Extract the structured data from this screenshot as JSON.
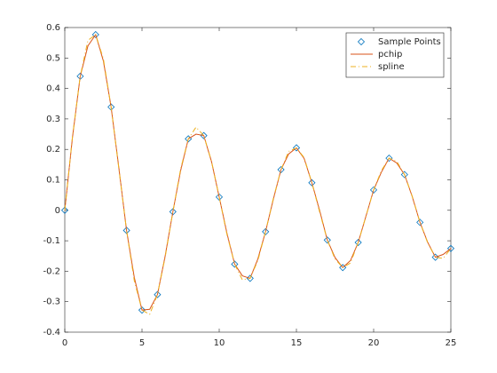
{
  "chart_data": {
    "type": "line",
    "xlim": [
      0,
      25
    ],
    "xticks": [
      0,
      5,
      10,
      15,
      20,
      25
    ],
    "ylim": [
      -0.4,
      0.6
    ],
    "yticks": [
      -0.4,
      -0.3,
      -0.2,
      -0.1,
      0,
      0.1,
      0.2,
      0.3,
      0.4,
      0.5,
      0.6
    ],
    "legend": "upper-right",
    "series": [
      {
        "name": "Sample Points",
        "color": "#0072bd",
        "marker": "diamond",
        "x": [
          0,
          1,
          2,
          3,
          4,
          5,
          6,
          7,
          8,
          9,
          10,
          11,
          12,
          13,
          14,
          15,
          16,
          17,
          18,
          19,
          20,
          21,
          22,
          23,
          24,
          25
        ],
        "values": [
          0,
          0.4401,
          0.5767,
          0.3391,
          -0.066,
          -0.3276,
          -0.2767,
          -0.0047,
          0.2346,
          0.2453,
          0.0435,
          -0.1768,
          -0.2234,
          -0.0703,
          0.1334,
          0.2051,
          0.0904,
          -0.0977,
          -0.188,
          -0.1057,
          0.0668,
          0.1711,
          0.1172,
          -0.0395,
          -0.154,
          -0.1254
        ]
      },
      {
        "name": "pchip",
        "color": "#d95319",
        "dash": "solid",
        "x": [
          0,
          0.5,
          1,
          1.5,
          2,
          2.5,
          3,
          3.5,
          4,
          4.5,
          5,
          5.5,
          6,
          6.5,
          7,
          7.5,
          8,
          8.5,
          9,
          9.5,
          10,
          10.5,
          11,
          11.5,
          12,
          12.5,
          13,
          13.5,
          14,
          14.5,
          15,
          15.5,
          16,
          16.5,
          17,
          17.5,
          18,
          18.5,
          19,
          19.5,
          20,
          20.5,
          21,
          21.5,
          22,
          22.5,
          23,
          23.5,
          24,
          24.5,
          25
        ],
        "values": [
          0,
          0.24,
          0.4401,
          0.54,
          0.5767,
          0.49,
          0.3391,
          0.14,
          -0.066,
          -0.22,
          -0.3276,
          -0.325,
          -0.2767,
          -0.15,
          -0.0047,
          0.13,
          0.2346,
          0.25,
          0.2453,
          0.16,
          0.0435,
          -0.075,
          -0.1768,
          -0.215,
          -0.2234,
          -0.16,
          -0.0703,
          0.035,
          0.1334,
          0.185,
          0.2051,
          0.17,
          0.0904,
          0,
          -0.0977,
          -0.155,
          -0.188,
          -0.165,
          -0.1057,
          -0.02,
          0.0668,
          0.125,
          0.1711,
          0.155,
          0.1172,
          0.045,
          -0.0395,
          -0.105,
          -0.154,
          -0.145,
          -0.1254
        ]
      },
      {
        "name": "spline",
        "color": "#edb120",
        "dash": "dashdot",
        "x": [
          0,
          0.5,
          1,
          1.5,
          2,
          2.5,
          3,
          3.5,
          4,
          4.5,
          5,
          5.5,
          6,
          6.5,
          7,
          7.5,
          8,
          8.5,
          9,
          9.5,
          10,
          10.5,
          11,
          11.5,
          12,
          12.5,
          13,
          13.5,
          14,
          14.5,
          15,
          15.5,
          16,
          16.5,
          17,
          17.5,
          18,
          18.5,
          19,
          19.5,
          20,
          20.5,
          21,
          21.5,
          22,
          22.5,
          23,
          23.5,
          24,
          24.5,
          25
        ],
        "values": [
          0,
          0.2423,
          0.4401,
          0.5579,
          0.5767,
          0.4971,
          0.3391,
          0.1374,
          -0.066,
          -0.2311,
          -0.3276,
          -0.3414,
          -0.2767,
          -0.1538,
          -0.0047,
          0.1352,
          0.2346,
          0.2731,
          0.2453,
          0.1613,
          0.0435,
          -0.0789,
          -0.1768,
          -0.2284,
          -0.2234,
          -0.1655,
          -0.0703,
          0.038,
          0.1334,
          0.1934,
          0.2051,
          0.1729,
          0.0904,
          -0.005,
          -0.0977,
          -0.1597,
          -0.188,
          -0.173,
          -0.1057,
          -0.02,
          0.0668,
          0.13,
          0.1711,
          0.1604,
          0.1172,
          0.046,
          -0.0395,
          -0.107,
          -0.154,
          -0.158,
          -0.1254
        ]
      }
    ]
  }
}
